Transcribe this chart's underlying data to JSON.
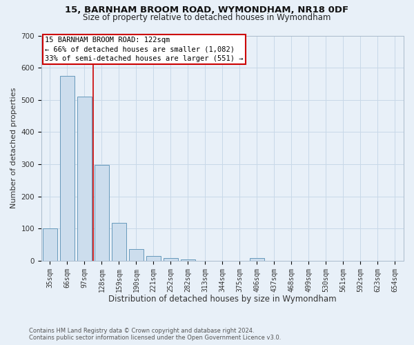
{
  "title1": "15, BARNHAM BROOM ROAD, WYMONDHAM, NR18 0DF",
  "title2": "Size of property relative to detached houses in Wymondham",
  "xlabel": "Distribution of detached houses by size in Wymondham",
  "ylabel": "Number of detached properties",
  "footnote1": "Contains HM Land Registry data © Crown copyright and database right 2024.",
  "footnote2": "Contains public sector information licensed under the Open Government Licence v3.0.",
  "bar_labels": [
    "35sqm",
    "66sqm",
    "97sqm",
    "128sqm",
    "159sqm",
    "190sqm",
    "221sqm",
    "252sqm",
    "282sqm",
    "313sqm",
    "344sqm",
    "375sqm",
    "406sqm",
    "437sqm",
    "468sqm",
    "499sqm",
    "530sqm",
    "561sqm",
    "592sqm",
    "623sqm",
    "654sqm"
  ],
  "bar_values": [
    100,
    575,
    510,
    298,
    118,
    37,
    15,
    8,
    5,
    0,
    0,
    0,
    8,
    0,
    0,
    0,
    0,
    0,
    0,
    0,
    0
  ],
  "bar_color": "#ccdded",
  "bar_edgecolor": "#6699bb",
  "ylim": [
    0,
    700
  ],
  "yticks": [
    0,
    100,
    200,
    300,
    400,
    500,
    600,
    700
  ],
  "vline_pos": 2.5,
  "annotation_title": "15 BARNHAM BROOM ROAD: 122sqm",
  "annotation_line1": "← 66% of detached houses are smaller (1,082)",
  "annotation_line2": "33% of semi-detached houses are larger (551) →",
  "annotation_box_color": "#ffffff",
  "annotation_box_edgecolor": "#cc0000",
  "vline_color": "#cc0000",
  "grid_color": "#c8d8e8",
  "background_color": "#e8f0f8",
  "title1_fontsize": 9.5,
  "title2_fontsize": 8.5,
  "ylabel_fontsize": 8,
  "xlabel_fontsize": 8.5,
  "tick_fontsize": 7,
  "annot_fontsize": 7.5,
  "footnote_fontsize": 6
}
